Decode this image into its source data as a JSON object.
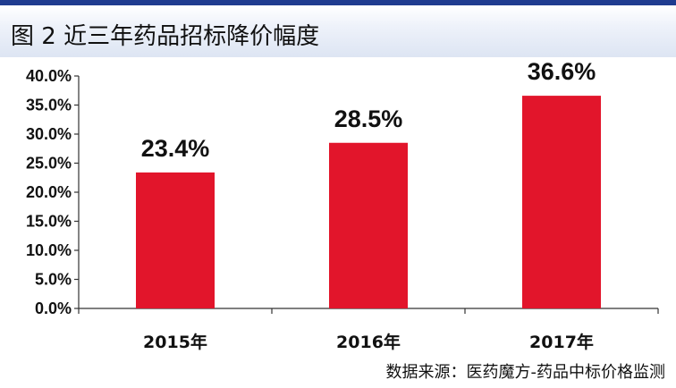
{
  "title": "图 2  近三年药品招标降价幅度",
  "source": "数据来源：医药魔方-药品中标价格监测",
  "colors": {
    "bar": "#e2152b",
    "axis": "#333333",
    "header_rule": "#1f3b8f",
    "text": "#111111"
  },
  "chart_data": {
    "type": "bar",
    "categories": [
      "2015年",
      "2016年",
      "2017年"
    ],
    "values": [
      23.4,
      28.5,
      36.6
    ],
    "data_labels": [
      "23.4%",
      "28.5%",
      "36.6%"
    ],
    "ylim": [
      0,
      40
    ],
    "yticks": [
      0,
      5,
      10,
      15,
      20,
      25,
      30,
      35,
      40
    ],
    "ytick_labels": [
      "0.0%",
      "5.0%",
      "10.0%",
      "15.0%",
      "20.0%",
      "25.0%",
      "30.0%",
      "35.0%",
      "40.0%"
    ],
    "grid": false,
    "legend": "none"
  }
}
